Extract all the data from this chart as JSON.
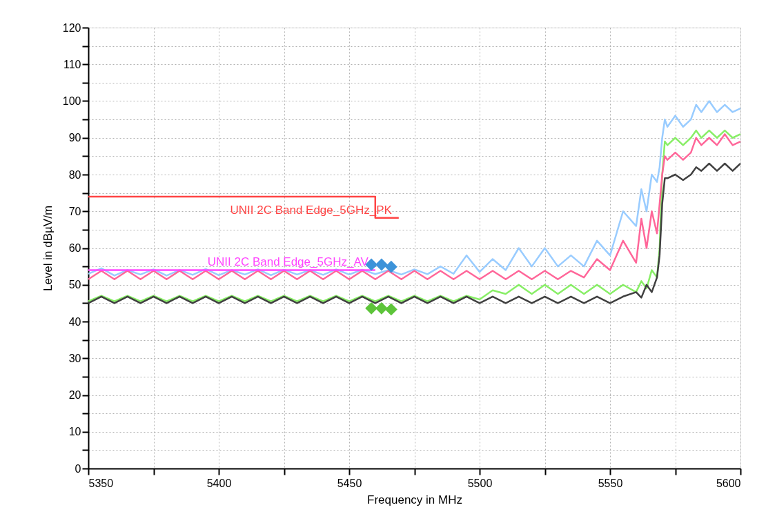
{
  "chart_data": {
    "type": "line",
    "xlabel": "Frequency in MHz",
    "ylabel": "Level in dBµV/m",
    "xlim": [
      5350,
      5600
    ],
    "ylim": [
      0,
      120
    ],
    "xticks": [
      5350,
      {
        "value": 5375,
        "label": null
      },
      5400,
      {
        "value": 5425,
        "label": null
      },
      5450,
      {
        "value": 5475,
        "label": null
      },
      5500,
      {
        "value": 5525,
        "label": null
      },
      5550,
      {
        "value": 5575,
        "label": null
      },
      5600
    ],
    "yticks": [
      0,
      {
        "value": 5,
        "label": null
      },
      10,
      {
        "value": 15,
        "label": null
      },
      20,
      {
        "value": 25,
        "label": null
      },
      30,
      {
        "value": 35,
        "label": null
      },
      40,
      {
        "value": 45,
        "label": null
      },
      50,
      {
        "value": 55,
        "label": null
      },
      60,
      {
        "value": 65,
        "label": null
      },
      70,
      {
        "value": 75,
        "label": null
      },
      80,
      {
        "value": 85,
        "label": null
      },
      90,
      {
        "value": 95,
        "label": null
      },
      100,
      {
        "value": 105,
        "label": null
      },
      110,
      {
        "value": 115,
        "label": null
      },
      120
    ],
    "grid": true,
    "line_style": "solid",
    "x": [
      5350,
      5355,
      5360,
      5365,
      5370,
      5375,
      5380,
      5385,
      5390,
      5395,
      5400,
      5405,
      5410,
      5415,
      5420,
      5425,
      5430,
      5435,
      5440,
      5445,
      5450,
      5455,
      5460,
      5465,
      5470,
      5475,
      5480,
      5485,
      5490,
      5495,
      5500,
      5505,
      5510,
      5515,
      5520,
      5525,
      5530,
      5535,
      5540,
      5545,
      5550,
      5555,
      5560,
      5562,
      5564,
      5566,
      5568,
      5569,
      5570,
      5571,
      5572,
      5575,
      5578,
      5581,
      5582,
      5583,
      5585,
      5588,
      5591,
      5594,
      5597,
      5600
    ],
    "series": [
      {
        "color": "#99ccff",
        "values": [
          53,
          54.5,
          52.5,
          54,
          52.8,
          54.2,
          52.5,
          54,
          52.7,
          54.3,
          52.6,
          54,
          52.8,
          54.2,
          52.6,
          54.1,
          52.8,
          54,
          52.7,
          54.2,
          52.8,
          54.1,
          52.9,
          54,
          52.8,
          54.2,
          52.9,
          55,
          53,
          58,
          53.5,
          57,
          54,
          60,
          55,
          60,
          55,
          58,
          55,
          62,
          58,
          70,
          66,
          76,
          70,
          80,
          78,
          82,
          90,
          95,
          93,
          96,
          93,
          95,
          97,
          99,
          97,
          100,
          97,
          99,
          97,
          98
        ]
      },
      {
        "color": "#88ee66",
        "values": [
          45.5,
          47,
          45.5,
          47,
          45.5,
          47,
          45.5,
          47,
          45.5,
          47,
          45.5,
          47,
          45.5,
          47,
          45.5,
          47,
          45.5,
          47,
          45.5,
          47,
          45.5,
          47,
          45.5,
          47,
          45.5,
          47,
          45.5,
          47,
          45.5,
          47,
          46,
          48.5,
          47.5,
          50,
          47.5,
          50,
          47.5,
          50,
          47.5,
          50,
          47.5,
          50,
          48,
          51,
          49,
          54,
          52,
          60,
          80,
          89,
          88,
          90,
          88,
          90,
          91,
          92,
          90,
          92,
          90,
          92,
          90,
          91
        ]
      },
      {
        "color": "#ff6699",
        "values": [
          51.5,
          53.8,
          51.5,
          53.8,
          51.5,
          53.8,
          51.5,
          53.8,
          51.5,
          53.8,
          51.5,
          53.8,
          51.5,
          53.8,
          51.5,
          53.8,
          51.5,
          53.8,
          51.5,
          53.8,
          51.5,
          53.8,
          51.5,
          53.8,
          51.5,
          53.8,
          51.5,
          53.8,
          51.5,
          53.8,
          51.5,
          53.8,
          51.5,
          53.8,
          51.5,
          53.8,
          51.5,
          53.8,
          52,
          57,
          54,
          62,
          56,
          68,
          60,
          70,
          64,
          72,
          80,
          85,
          84,
          86,
          84,
          86,
          88,
          90,
          88,
          90,
          88,
          91,
          88,
          89
        ]
      },
      {
        "color": "#404040",
        "values": [
          45,
          46.8,
          45,
          46.8,
          45,
          46.8,
          45,
          46.8,
          45,
          46.8,
          45,
          46.8,
          45,
          46.8,
          45,
          46.8,
          45,
          46.8,
          45,
          46.8,
          45,
          46.8,
          45,
          46.8,
          45,
          46.8,
          45,
          46.8,
          45,
          46.8,
          45,
          46.8,
          45,
          46.8,
          45,
          46.8,
          45,
          46.8,
          45,
          46.8,
          45,
          46.8,
          48,
          46.5,
          50,
          48,
          52,
          58,
          72,
          79,
          79,
          80,
          78.5,
          80,
          81,
          82,
          81,
          83,
          81,
          83,
          81,
          83
        ]
      },
      {
        "type": "line",
        "color": "#ff4444",
        "x": [
          5350,
          5460,
          5460,
          5469
        ],
        "values": [
          74,
          74,
          68.2,
          68.2
        ]
      },
      {
        "type": "line",
        "color": "#ff44ff",
        "x": [
          5350,
          5460
        ],
        "values": [
          54,
          54
        ]
      },
      {
        "type": "scatter",
        "marker": "diamond",
        "color": "#3d93d9",
        "x": [
          5458.5,
          5462.4,
          5466.1
        ],
        "values": [
          55.5,
          55.5,
          54.9
        ]
      },
      {
        "type": "scatter",
        "marker": "diamond",
        "color": "#5dc43a",
        "x": [
          5458.5,
          5462.4,
          5466.1
        ],
        "values": [
          43.6,
          43.6,
          43.3
        ]
      }
    ],
    "annotations": [
      "UNII 2C Band Edge_5GHz_PK",
      "UNII 2C Band Edge_5GHz_AV"
    ]
  }
}
